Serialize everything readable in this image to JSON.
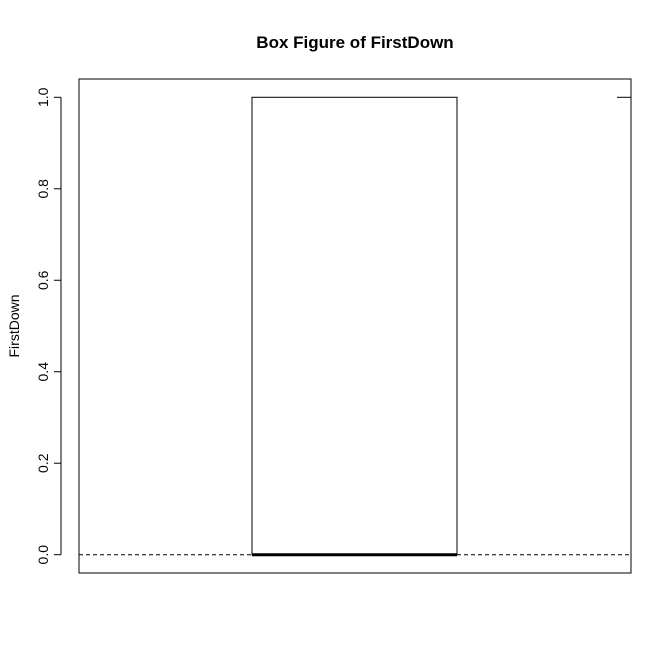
{
  "chart_data": {
    "type": "box",
    "title": "Box Figure of FirstDown",
    "ylabel": "FirstDown",
    "xlabel": "",
    "ylim": [
      -0.04,
      1.04
    ],
    "yticks": [
      "0.0",
      "0.2",
      "0.4",
      "0.6",
      "0.8",
      "1.0"
    ],
    "box": {
      "min": 0.0,
      "q1": 0.0,
      "median": 0.0,
      "q3": 1.0,
      "max": 1.0
    },
    "grid": false
  }
}
